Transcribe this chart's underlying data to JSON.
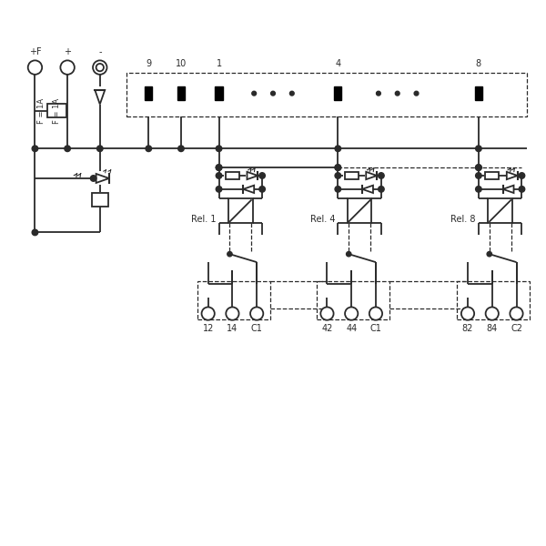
{
  "bg_color": "#ffffff",
  "lc": "#2a2a2a",
  "dc": "#2a2a2a",
  "lw": 1.3,
  "dlw": 0.9,
  "figsize": [
    6.0,
    6.0
  ],
  "dpi": 100,
  "relay_labels": [
    "Rel. 1",
    "Rel. 4",
    "Rel. 8"
  ],
  "out1": [
    "12",
    "14",
    "C1"
  ],
  "out2": [
    "42",
    "44",
    "C1"
  ],
  "out3": [
    "82",
    "84",
    "C2"
  ],
  "pin_labels": [
    "9",
    "10",
    "1",
    "4",
    "8"
  ],
  "top_labels": [
    "+F",
    "+",
    "-"
  ]
}
